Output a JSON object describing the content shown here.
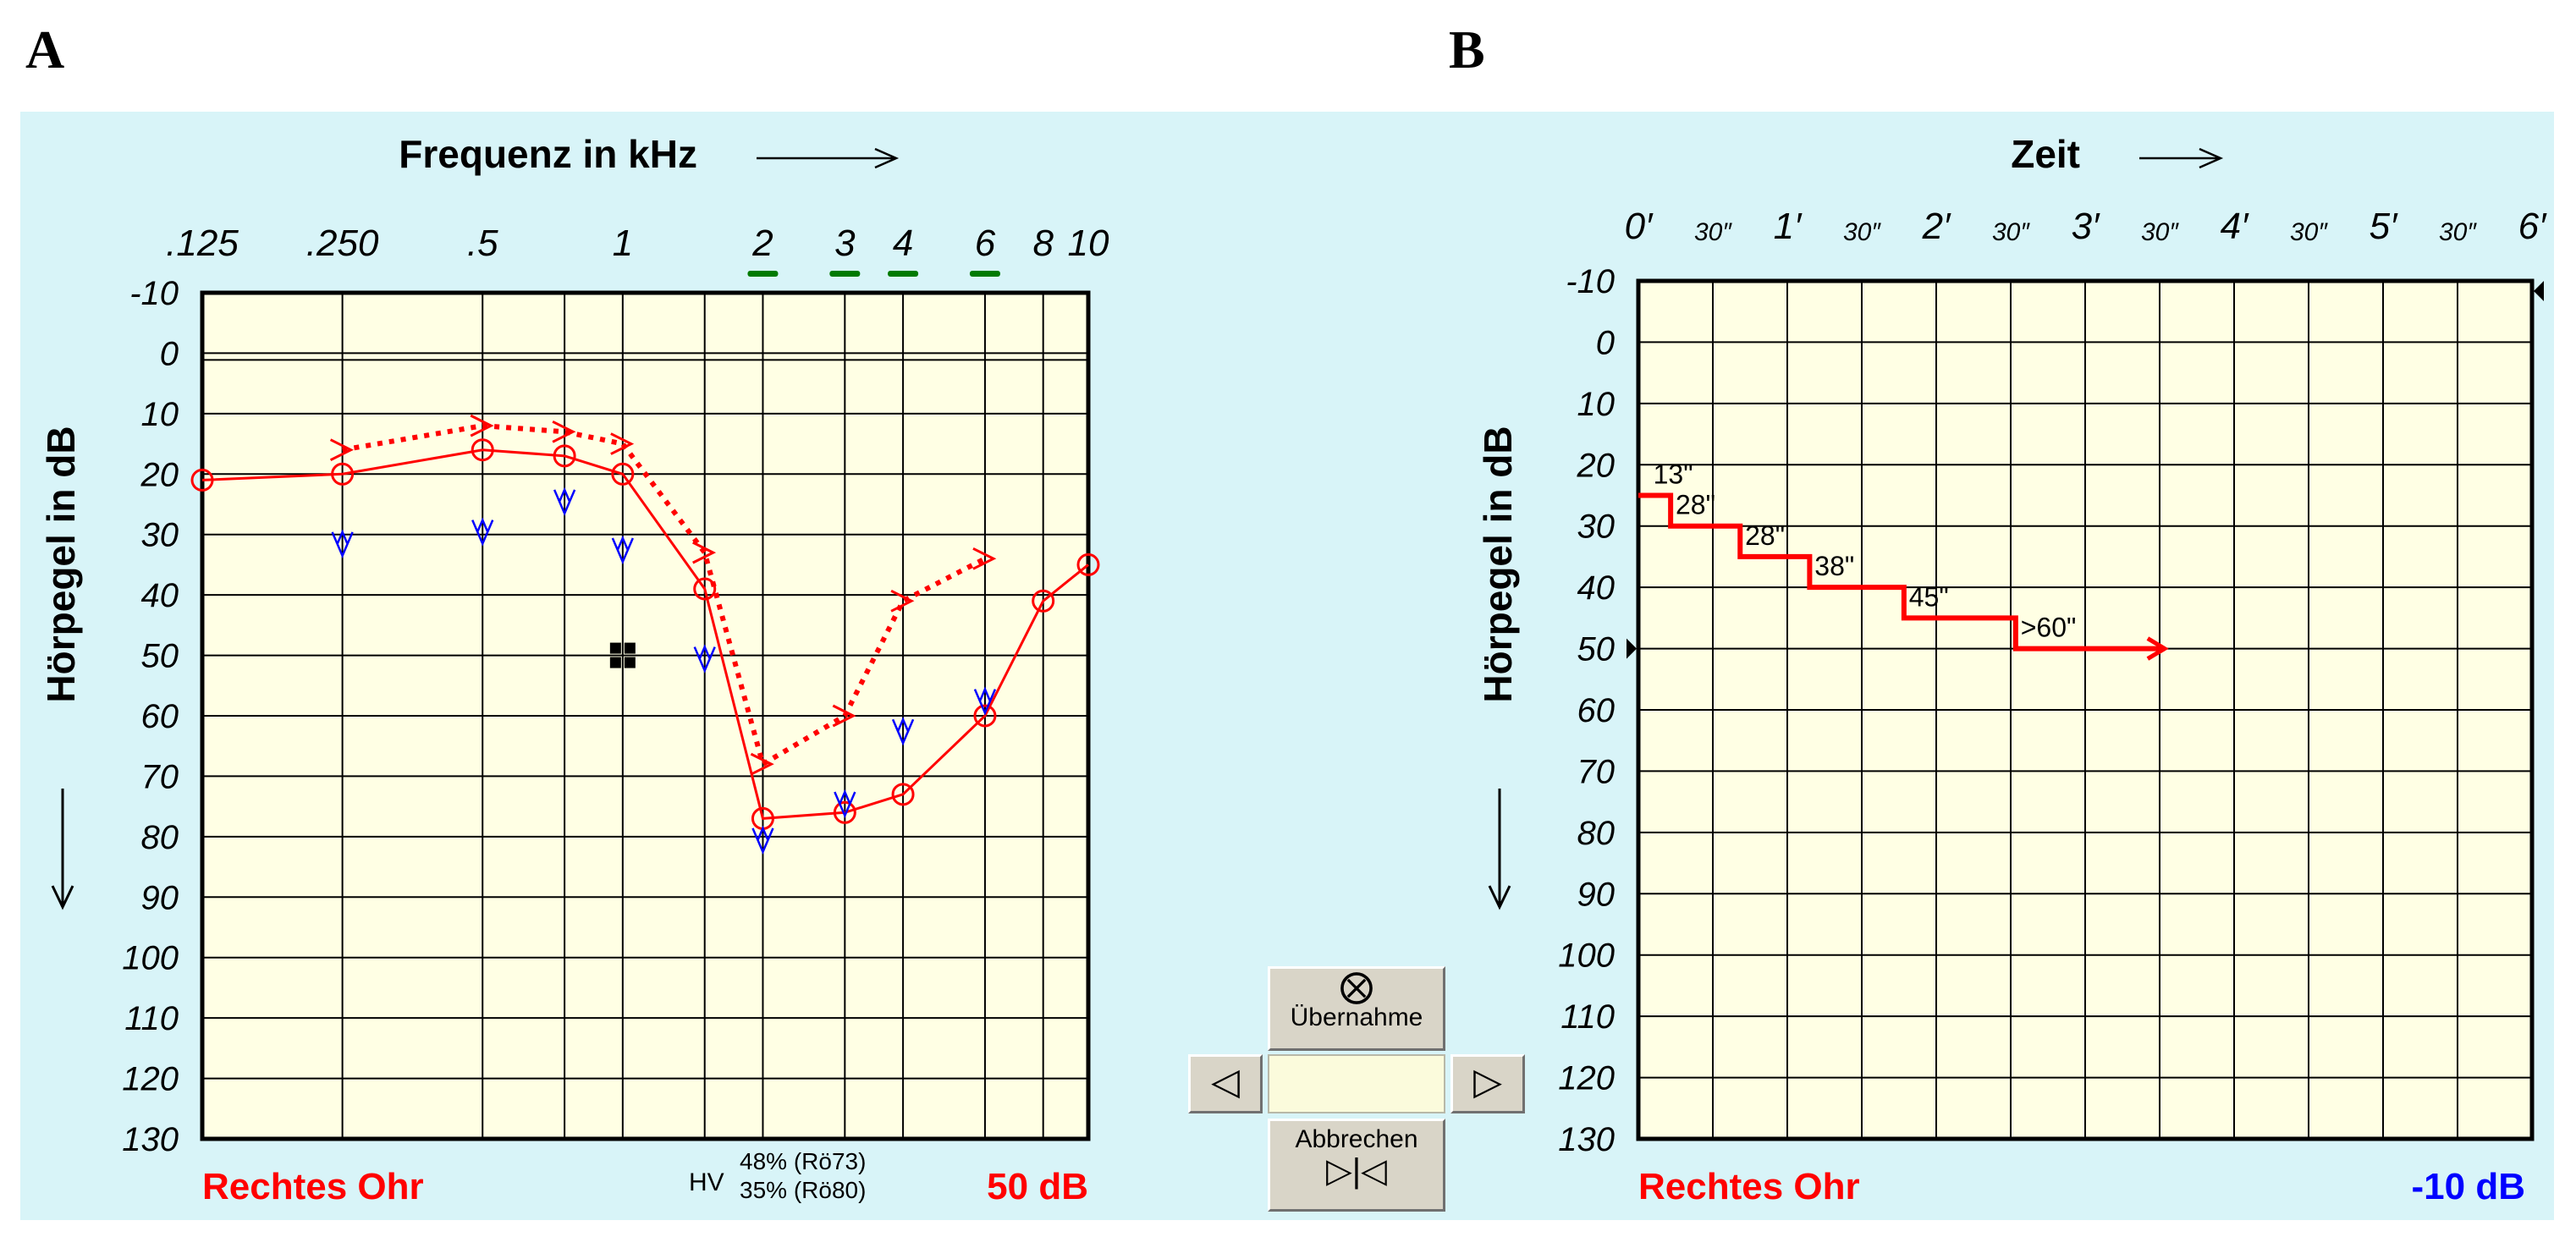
{
  "panel_labels": [
    "A",
    "B"
  ],
  "chart_data": [
    {
      "type": "line",
      "title": "Frequenz in kHz",
      "xlabel": "Frequenz in kHz",
      "ylabel": "Hörpegel in dB",
      "x_scale": "log",
      "x_ticks": [
        {
          "value": 0.125,
          "label": ".125"
        },
        {
          "value": 0.25,
          "label": ".250"
        },
        {
          "value": 0.5,
          "label": ".5"
        },
        {
          "value": 1,
          "label": "1"
        },
        {
          "value": 2,
          "label": "2"
        },
        {
          "value": 3,
          "label": "3"
        },
        {
          "value": 4,
          "label": "4"
        },
        {
          "value": 6,
          "label": "6"
        },
        {
          "value": 8,
          "label": "8"
        },
        {
          "value": 10,
          "label": "10"
        }
      ],
      "x_extra_gridlines": [
        0.75,
        1.5
      ],
      "underlined_ticks": [
        2,
        3,
        4,
        6
      ],
      "underline_color": "#007a00",
      "y_ticks": [
        -10,
        0,
        10,
        20,
        30,
        40,
        50,
        60,
        70,
        80,
        90,
        100,
        110,
        120,
        130
      ],
      "ylim": [
        -10,
        130
      ],
      "y_inverted": true,
      "grid": true,
      "series": [
        {
          "style": "solid-circle",
          "color": "#ff0000",
          "points": [
            [
              0.125,
              21
            ],
            [
              0.25,
              20
            ],
            [
              0.5,
              16
            ],
            [
              0.75,
              17
            ],
            [
              1,
              20
            ],
            [
              1.5,
              39
            ],
            [
              2,
              77
            ],
            [
              3,
              76
            ],
            [
              4,
              73
            ],
            [
              6,
              60
            ],
            [
              8,
              41
            ],
            [
              10,
              35
            ]
          ]
        },
        {
          "style": "dotted-gt",
          "color": "#ff0000",
          "points": [
            [
              0.25,
              16
            ],
            [
              0.5,
              12
            ],
            [
              0.75,
              13
            ],
            [
              1,
              15
            ],
            [
              1.5,
              33
            ],
            [
              2,
              68
            ],
            [
              3,
              60
            ],
            [
              4,
              41
            ],
            [
              6,
              34
            ]
          ]
        },
        {
          "style": "squiggle",
          "color": "#0000ff",
          "points": [
            [
              0.25,
              31
            ],
            [
              0.5,
              29
            ],
            [
              0.75,
              24
            ],
            [
              1,
              32
            ],
            [
              1.5,
              50
            ],
            [
              2,
              80
            ],
            [
              3,
              74
            ],
            [
              4,
              62
            ],
            [
              6,
              57
            ]
          ]
        },
        {
          "style": "black-square",
          "color": "#000000",
          "points": [
            [
              1,
              50
            ]
          ]
        }
      ],
      "footer": {
        "ear": "Rechtes Ohr",
        "hv_label": "HV",
        "hv_values": [
          "48% (Rö73)",
          "35% (Rö80)"
        ],
        "level": "50 dB"
      },
      "colors": {
        "ear": "#ff0000",
        "level": "#ff0000",
        "plot_bg": "#ffffe4",
        "panel_bg": "#d8f4f8"
      }
    },
    {
      "type": "line",
      "title": "Zeit",
      "xlabel": "Zeit",
      "ylabel": "Hörpegel in dB",
      "x_unit": "seconds",
      "x_ticks": [
        {
          "value": 0,
          "label": "0′",
          "minor": false
        },
        {
          "value": 30,
          "label": "30″",
          "minor": true
        },
        {
          "value": 60,
          "label": "1′",
          "minor": false
        },
        {
          "value": 90,
          "label": "30″",
          "minor": true
        },
        {
          "value": 120,
          "label": "2′",
          "minor": false
        },
        {
          "value": 150,
          "label": "30″",
          "minor": true
        },
        {
          "value": 180,
          "label": "3′",
          "minor": false
        },
        {
          "value": 210,
          "label": "30″",
          "minor": true
        },
        {
          "value": 240,
          "label": "4′",
          "minor": false
        },
        {
          "value": 270,
          "label": "30″",
          "minor": true
        },
        {
          "value": 300,
          "label": "5′",
          "minor": false
        },
        {
          "value": 330,
          "label": "30″",
          "minor": true
        },
        {
          "value": 360,
          "label": "6′",
          "minor": false
        }
      ],
      "xlim": [
        0,
        360
      ],
      "y_ticks": [
        -10,
        0,
        10,
        20,
        30,
        40,
        50,
        60,
        70,
        80,
        90,
        100,
        110,
        120,
        130
      ],
      "ylim": [
        -10,
        130
      ],
      "y_inverted": true,
      "grid": true,
      "series": [
        {
          "style": "step",
          "color": "#ff0000",
          "steps": [
            {
              "level": 25,
              "duration": 13,
              "label": "13\""
            },
            {
              "level": 30,
              "duration": 28,
              "label": "28\""
            },
            {
              "level": 35,
              "duration": 28,
              "label": "28\""
            },
            {
              "level": 40,
              "duration": 38,
              "label": "38\""
            },
            {
              "level": 45,
              "duration": 45,
              "label": "45\""
            },
            {
              "level": 50,
              "duration": 60,
              "label": ">60\""
            }
          ]
        }
      ],
      "marker_level": 50,
      "footer": {
        "ear": "Rechtes Ohr",
        "level": "-10 dB"
      },
      "colors": {
        "ear": "#ff0000",
        "level": "#0000ff",
        "plot_bg": "#ffffe4"
      }
    }
  ],
  "controls": {
    "accept_label": "Übernahme",
    "accept_symbol": "⨂",
    "cancel_label": "Abbrechen",
    "cancel_symbol": "▷|◁",
    "prev_symbol": "◁",
    "next_symbol": "▷"
  }
}
